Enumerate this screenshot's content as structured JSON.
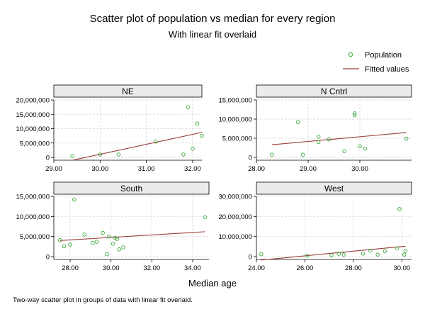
{
  "title": "Scatter plot of population vs median for every region",
  "subtitle": "With linear fit overlaid",
  "xlabel": "Median age",
  "caption": "Two-way scatter plot in groups of data with linear fit overlaid.",
  "legend": {
    "placement": "top-right",
    "items": [
      {
        "label": "Population",
        "kind": "marker"
      },
      {
        "label": "Fitted values",
        "kind": "line"
      }
    ]
  },
  "colors": {
    "points": "#3aa63a",
    "fit": "#9b3b3b",
    "header_bg": "#ebebeb",
    "grid": "#d4d4d4"
  },
  "chart_data": [
    {
      "type": "scatter",
      "panel": "NE",
      "xlim": [
        29.0,
        32.2
      ],
      "ylim": [
        0,
        20000000
      ],
      "xticks": [
        29,
        30,
        31,
        32
      ],
      "xtick_labels": [
        "29.00",
        "30.00",
        "31.00",
        "32.00"
      ],
      "yticks": [
        0,
        5000000,
        10000000,
        15000000,
        20000000
      ],
      "ytick_labels": [
        "0",
        "5,000,000",
        "10,000,000",
        "15,000,000",
        "20,000,000"
      ],
      "points": [
        [
          29.4,
          500000
        ],
        [
          30.0,
          1000000
        ],
        [
          30.4,
          1000000
        ],
        [
          31.2,
          5500000
        ],
        [
          31.8,
          1000000
        ],
        [
          31.9,
          17500000
        ],
        [
          32.0,
          3000000
        ],
        [
          32.1,
          11800000
        ],
        [
          32.2,
          7500000
        ]
      ],
      "fit": [
        [
          29.4,
          -1000000
        ],
        [
          32.2,
          8700000
        ]
      ],
      "grid": true
    },
    {
      "type": "scatter",
      "panel": "N Cntrl",
      "xlim": [
        28.0,
        31.0
      ],
      "ylim": [
        0,
        15000000
      ],
      "xticks": [
        28,
        29,
        30
      ],
      "xtick_labels": [
        "28.00",
        "29.00",
        "30.00"
      ],
      "yticks": [
        0,
        5000000,
        10000000,
        15000000
      ],
      "ytick_labels": [
        "0",
        "5,000,000",
        "10,000,000",
        "15,000,000"
      ],
      "points": [
        [
          28.3,
          700000
        ],
        [
          28.8,
          9200000
        ],
        [
          28.9,
          700000
        ],
        [
          29.2,
          4000000
        ],
        [
          29.2,
          5400000
        ],
        [
          29.4,
          4700000
        ],
        [
          29.7,
          1600000
        ],
        [
          29.9,
          11000000
        ],
        [
          29.9,
          11500000
        ],
        [
          30.0,
          2900000
        ],
        [
          30.1,
          2300000
        ],
        [
          30.9,
          4900000
        ]
      ],
      "fit": [
        [
          28.3,
          3300000
        ],
        [
          30.9,
          6500000
        ]
      ],
      "grid": true
    },
    {
      "type": "scatter",
      "panel": "South",
      "xlim": [
        27.2,
        34.8
      ],
      "ylim": [
        0,
        15000000
      ],
      "xticks": [
        28,
        30,
        32,
        34
      ],
      "xtick_labels": [
        "28.00",
        "30.00",
        "32.00",
        "34.00"
      ],
      "yticks": [
        0,
        5000000,
        10000000,
        15000000
      ],
      "ytick_labels": [
        "0",
        "5,000,000",
        "10,000,000",
        "15,000,000"
      ],
      "points": [
        [
          27.5,
          4100000
        ],
        [
          27.7,
          2600000
        ],
        [
          28.0,
          3000000
        ],
        [
          28.2,
          14200000
        ],
        [
          28.7,
          5500000
        ],
        [
          29.1,
          3400000
        ],
        [
          29.3,
          3700000
        ],
        [
          29.6,
          5900000
        ],
        [
          29.8,
          600000
        ],
        [
          29.9,
          5000000
        ],
        [
          30.1,
          3200000
        ],
        [
          30.2,
          4700000
        ],
        [
          30.3,
          4400000
        ],
        [
          30.4,
          1800000
        ],
        [
          30.6,
          2300000
        ],
        [
          34.6,
          9800000
        ]
      ],
      "fit": [
        [
          27.5,
          4000000
        ],
        [
          34.6,
          6200000
        ]
      ],
      "grid": true
    },
    {
      "type": "scatter",
      "panel": "West",
      "xlim": [
        24.0,
        30.4
      ],
      "ylim": [
        0,
        30000000
      ],
      "xticks": [
        24,
        26,
        28,
        30
      ],
      "xtick_labels": [
        "24.00",
        "26.00",
        "28.00",
        "30.00"
      ],
      "yticks": [
        0,
        10000000,
        20000000,
        30000000
      ],
      "ytick_labels": [
        "0",
        "10,000,000",
        "20,000,000",
        "30,000,000"
      ],
      "points": [
        [
          24.2,
          1200000
        ],
        [
          26.1,
          400000
        ],
        [
          27.1,
          700000
        ],
        [
          27.4,
          1400000
        ],
        [
          27.6,
          1000000
        ],
        [
          28.4,
          1500000
        ],
        [
          28.7,
          3000000
        ],
        [
          29.0,
          1000000
        ],
        [
          29.3,
          2700000
        ],
        [
          29.8,
          4200000
        ],
        [
          29.9,
          23700000
        ],
        [
          30.1,
          1000000
        ],
        [
          30.15,
          2900000
        ]
      ],
      "fit": [
        [
          24.2,
          -1700000
        ],
        [
          30.15,
          5200000
        ]
      ],
      "grid": true
    }
  ]
}
